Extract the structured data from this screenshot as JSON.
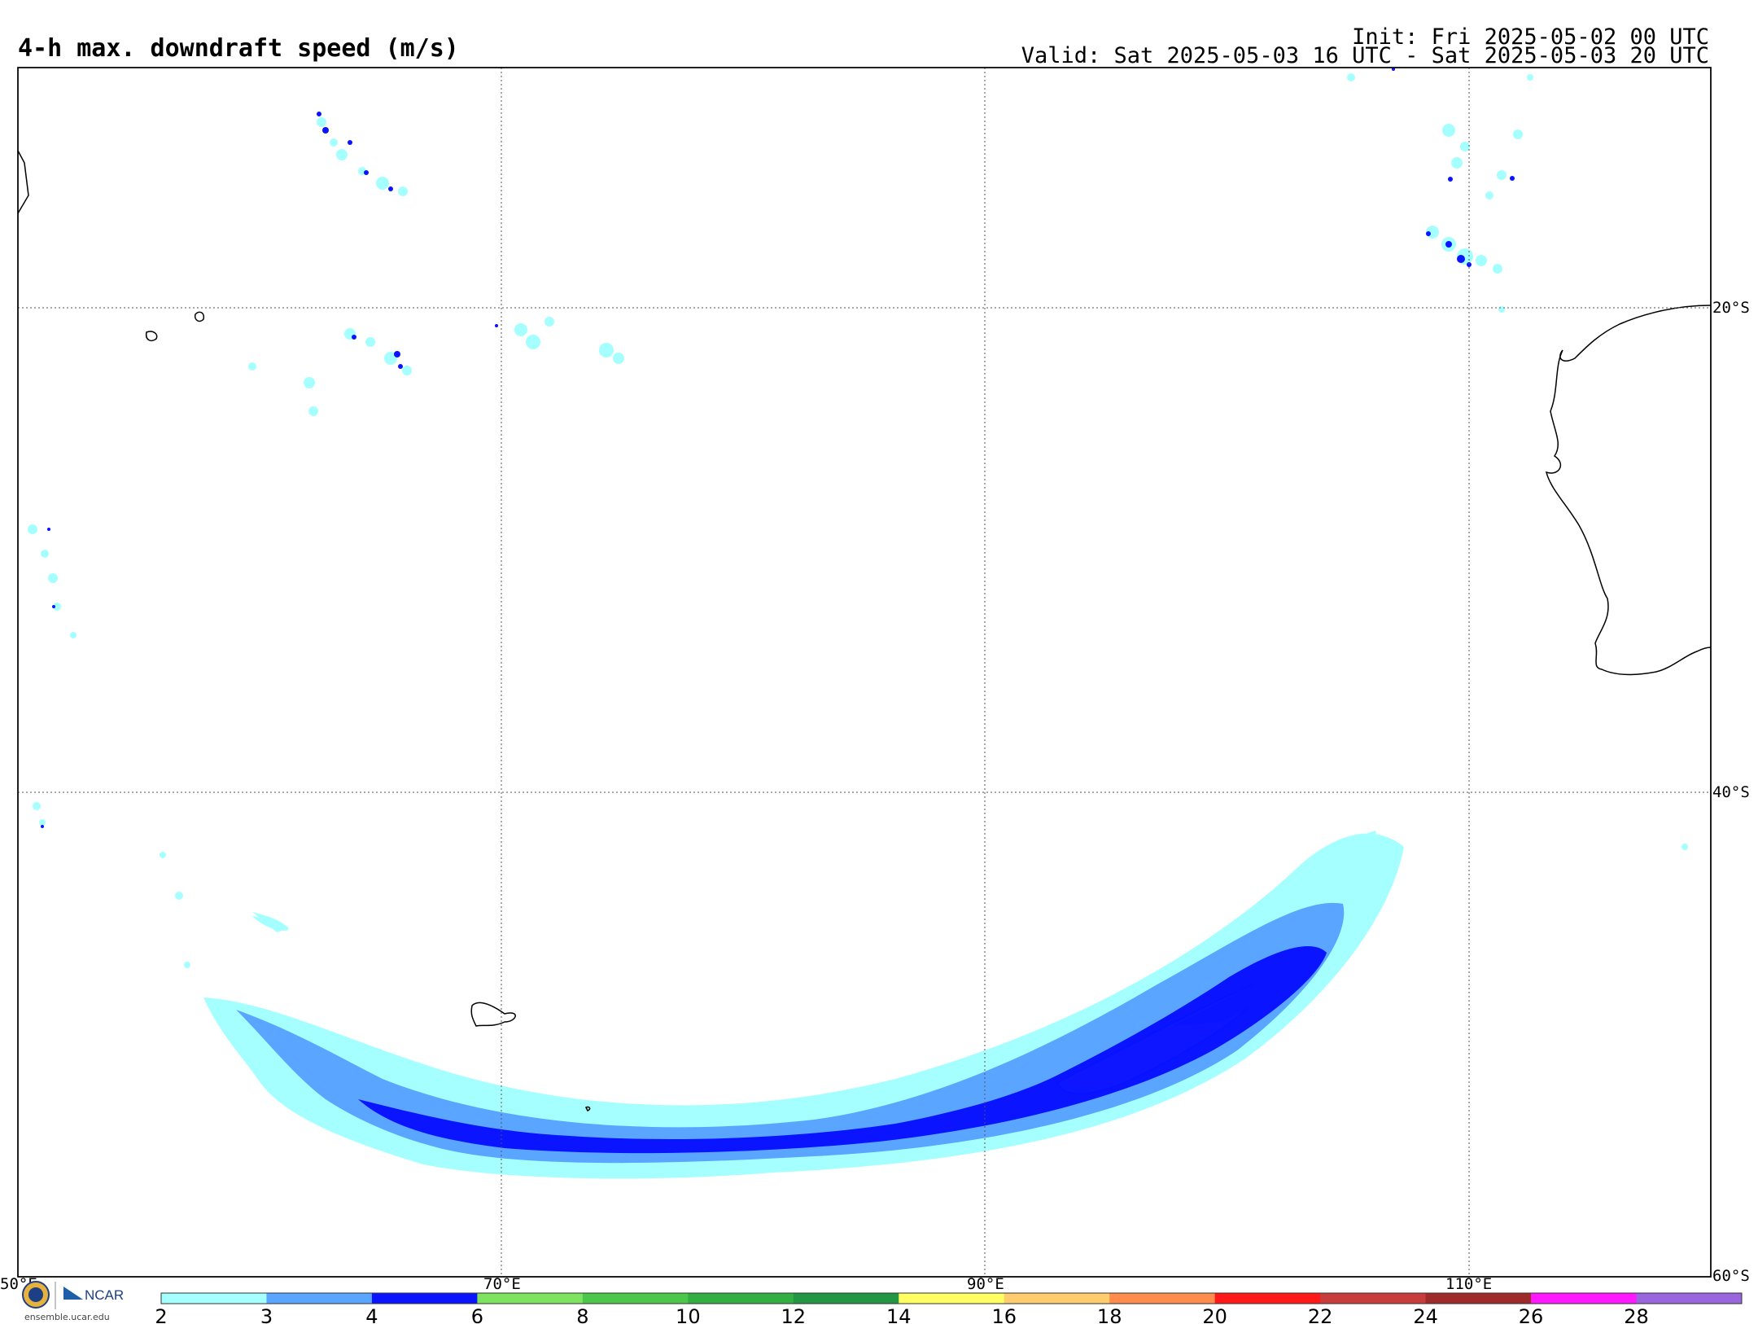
{
  "header": {
    "title": "4-h max. downdraft speed (m/s)",
    "init": "Init: Fri 2025-05-02 00 UTC",
    "valid": "Valid: Sat 2025-05-03 16 UTC - Sat 2025-05-03 20 UTC"
  },
  "map": {
    "lon_labels": [
      "50°E",
      "70°E",
      "90°E",
      "110°E"
    ],
    "lat_labels": [
      "20°S",
      "40°S",
      "60°S"
    ],
    "lon_range": [
      50,
      120
    ],
    "lat_range": [
      -10,
      -60
    ],
    "land_outline_color": "#000000",
    "grid_style": "dotted"
  },
  "colorbar": {
    "ticks": [
      "2",
      "3",
      "4",
      "6",
      "8",
      "10",
      "12",
      "14",
      "16",
      "18",
      "20",
      "22",
      "24",
      "26",
      "28"
    ],
    "colors": [
      "#a6ffff",
      "#5aa5ff",
      "#0a14ff",
      "#7ee45f",
      "#4cc74c",
      "#33ae43",
      "#229643",
      "#ffff64",
      "#ffcc6e",
      "#ff8c4c",
      "#ff1919",
      "#c83c3c",
      "#9e2a2a",
      "#ff19ff",
      "#9966dd"
    ]
  },
  "logo": {
    "org": "NCAR",
    "url": "ensemble.ucar.edu"
  }
}
